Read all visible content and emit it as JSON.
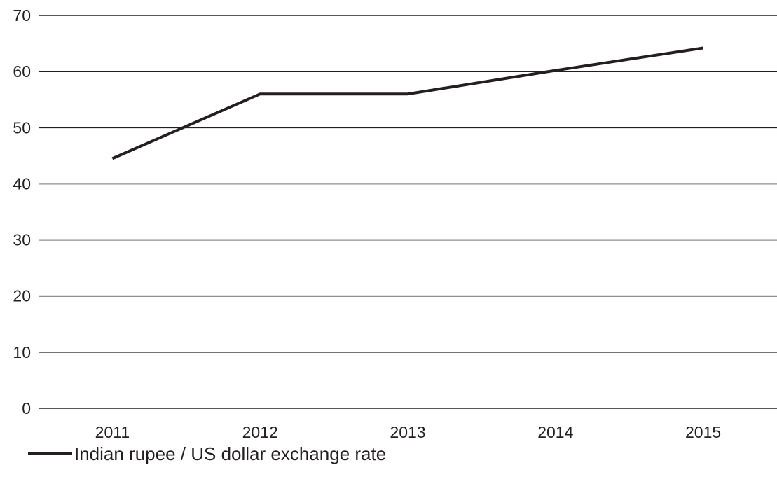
{
  "chart_data": {
    "type": "line",
    "title": "",
    "xlabel": "",
    "ylabel": "",
    "categories": [
      "2011",
      "2012",
      "2013",
      "2014",
      "2015"
    ],
    "series": [
      {
        "name": "Indian rupee / US dollar exchange rate",
        "values": [
          44.5,
          56,
          56,
          60.2,
          64.2
        ]
      }
    ],
    "ylim": [
      0,
      70
    ],
    "yticks": [
      0,
      10,
      20,
      30,
      40,
      50,
      60,
      70
    ],
    "grid": "horizontal",
    "legend_position": "bottom-left",
    "colors": {
      "line": "#231f20",
      "grid": "#231f20",
      "text": "#231f20"
    }
  },
  "legend": {
    "label": "Indian rupee / US dollar exchange rate"
  }
}
